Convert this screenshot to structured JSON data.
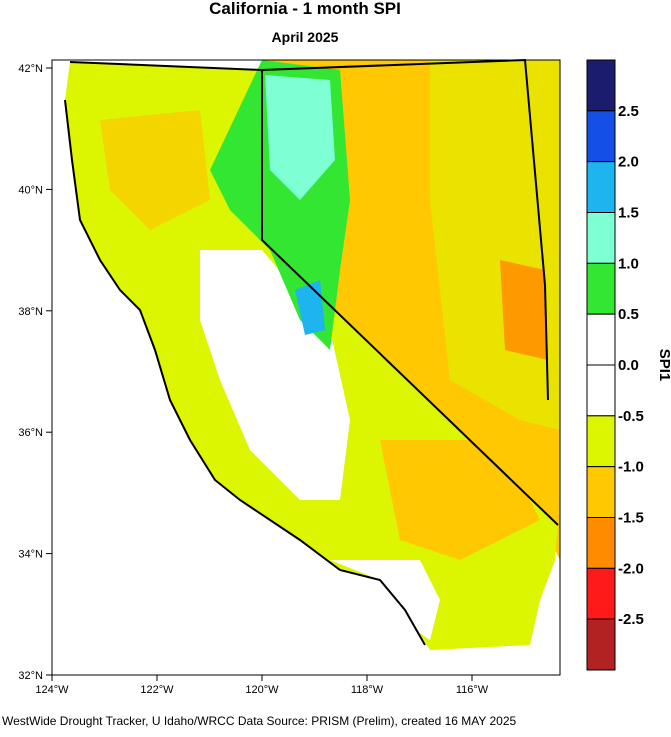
{
  "header": {
    "title": "California - 1 month SPI",
    "subtitle": "April 2025"
  },
  "map": {
    "lat_labels": [
      "42°N",
      "40°N",
      "38°N",
      "36°N",
      "34°N",
      "32°N"
    ],
    "lon_labels": [
      "124°W",
      "122°W",
      "120°W",
      "118°W",
      "116°W"
    ]
  },
  "colorbar": {
    "title": "SPI1",
    "labels": [
      "2.5",
      "2.0",
      "1.5",
      "1.0",
      "0.5",
      "0.0",
      "-0.5",
      "-1.0",
      "-1.5",
      "-2.0",
      "-2.5"
    ],
    "colors": [
      "#1c1c6e",
      "#1450e6",
      "#1eb4f0",
      "#7fffd4",
      "#32e632",
      "#ffffff",
      "#ffffff",
      "#dcf500",
      "#ffc800",
      "#ff8c00",
      "#ff1a1a",
      "#b22222"
    ]
  },
  "footer": "WestWide Drought Tracker, U Idaho/WRCC Data Source: PRISM (Prelim), created 16 MAY 2025"
}
